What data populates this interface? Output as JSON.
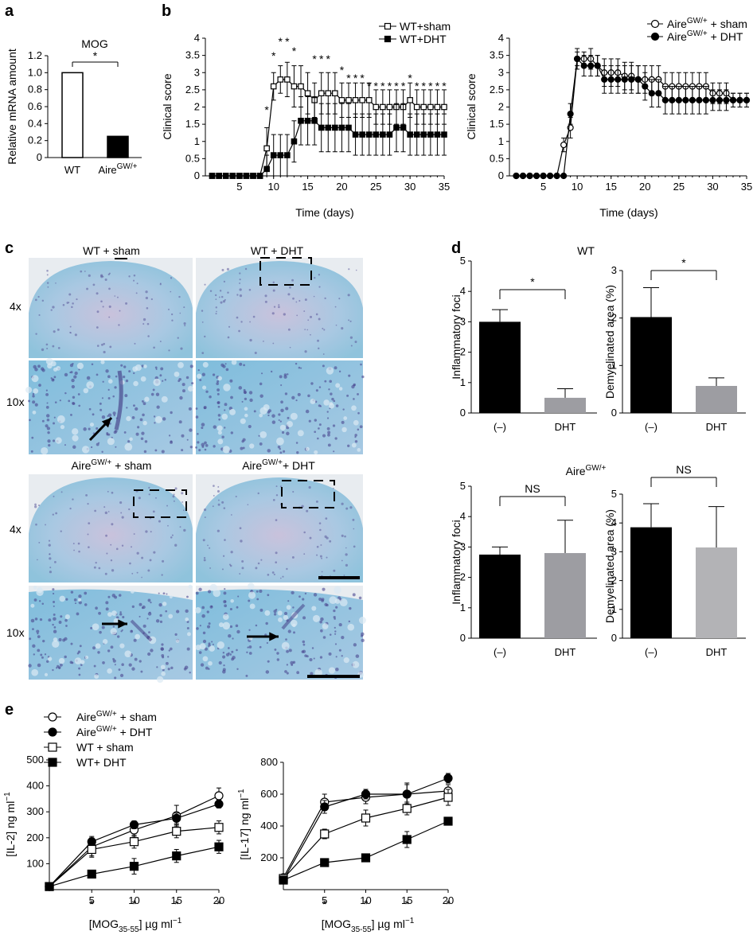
{
  "panel_labels": {
    "a": "a",
    "b": "b",
    "c": "c",
    "d": "d",
    "e": "e"
  },
  "chart_data": [
    {
      "id": "a",
      "type": "bar",
      "title": "MOG",
      "ylabel": "Relative mRNA amount",
      "ylim": [
        0,
        1.2
      ],
      "yticks": [
        "0",
        "0.2",
        "0.4",
        "0.6",
        "0.8",
        "1.0",
        "1.2"
      ],
      "categories": [
        "WT",
        "Aire"
      ],
      "category_superscripts": [
        "",
        "GW/+"
      ],
      "values": [
        1.0,
        0.25
      ],
      "colors": [
        "#ffffff",
        "#000000"
      ],
      "significance": "*"
    },
    {
      "id": "b-left",
      "type": "line",
      "xlabel": "Time (days)",
      "ylabel": "Clinical score",
      "xlim": [
        0,
        35
      ],
      "ylim": [
        0,
        4
      ],
      "xticks": [
        "5",
        "10",
        "15",
        "20",
        "25",
        "30",
        "35"
      ],
      "yticks": [
        "0",
        "0.5",
        "1",
        "1.5",
        "2",
        "2.5",
        "3",
        "3.5",
        "4"
      ],
      "series": [
        {
          "name": "WT+sham",
          "marker": "open-square",
          "x": [
            1,
            2,
            3,
            4,
            5,
            6,
            7,
            8,
            9,
            10,
            11,
            12,
            13,
            14,
            15,
            16,
            17,
            18,
            19,
            20,
            21,
            22,
            23,
            24,
            25,
            26,
            27,
            28,
            29,
            30,
            31,
            32,
            33,
            34,
            35
          ],
          "y": [
            0,
            0,
            0,
            0,
            0,
            0,
            0,
            0,
            0.8,
            2.6,
            2.8,
            2.8,
            2.6,
            2.6,
            2.4,
            2.2,
            2.4,
            2.4,
            2.4,
            2.2,
            2.2,
            2.2,
            2.2,
            2.2,
            2.0,
            2.0,
            2.0,
            2.0,
            2.0,
            2.2,
            2.0,
            2.0,
            2.0,
            2.0,
            2.0
          ],
          "err": [
            0,
            0,
            0,
            0,
            0,
            0,
            0,
            0,
            0.6,
            0.4,
            0.4,
            0.5,
            0.6,
            0.6,
            0.6,
            0.5,
            0.6,
            0.6,
            0.6,
            0.5,
            0.5,
            0.5,
            0.5,
            0.5,
            0.5,
            0.5,
            0.5,
            0.5,
            0.5,
            0.5,
            0.5,
            0.5,
            0.5,
            0.5,
            0.5
          ]
        },
        {
          "name": "WT+DHT",
          "marker": "filled-square",
          "x": [
            1,
            2,
            3,
            4,
            5,
            6,
            7,
            8,
            9,
            10,
            11,
            12,
            13,
            14,
            15,
            16,
            17,
            18,
            19,
            20,
            21,
            22,
            23,
            24,
            25,
            26,
            27,
            28,
            29,
            30,
            31,
            32,
            33,
            34,
            35
          ],
          "y": [
            0,
            0,
            0,
            0,
            0,
            0,
            0,
            0,
            0.2,
            0.6,
            0.6,
            0.6,
            1.0,
            1.6,
            1.6,
            1.6,
            1.4,
            1.4,
            1.4,
            1.4,
            1.4,
            1.2,
            1.2,
            1.2,
            1.2,
            1.2,
            1.2,
            1.4,
            1.4,
            1.2,
            1.2,
            1.2,
            1.2,
            1.2,
            1.2
          ],
          "err": [
            0,
            0,
            0,
            0,
            0,
            0,
            0,
            0,
            0.4,
            0.6,
            0.6,
            0.6,
            0.6,
            0.7,
            0.7,
            0.7,
            0.7,
            0.7,
            0.7,
            0.7,
            0.7,
            0.6,
            0.6,
            0.6,
            0.6,
            0.6,
            0.6,
            0.7,
            0.7,
            0.6,
            0.6,
            0.6,
            0.6,
            0.6,
            0.6
          ]
        }
      ],
      "significance": [
        {
          "x": 9,
          "text": "*"
        },
        {
          "x": 10,
          "text": "*"
        },
        {
          "x": 11,
          "text": "*"
        },
        {
          "x": 12,
          "text": "*"
        },
        {
          "x": 13,
          "text": "*"
        },
        {
          "x": 16,
          "text": "*"
        },
        {
          "x": 17,
          "text": "*"
        },
        {
          "x": 18,
          "text": "*"
        },
        {
          "x": 20,
          "text": "*"
        },
        {
          "x": 21,
          "text": "*"
        },
        {
          "x": 22,
          "text": "*"
        },
        {
          "x": 23,
          "text": "*"
        },
        {
          "x": 24,
          "text": "*"
        },
        {
          "x": 25,
          "text": "*"
        },
        {
          "x": 26,
          "text": "*"
        },
        {
          "x": 27,
          "text": "*"
        },
        {
          "x": 28,
          "text": "*"
        },
        {
          "x": 29,
          "text": "*"
        },
        {
          "x": 30,
          "text": "*"
        },
        {
          "x": 31,
          "text": "*"
        },
        {
          "x": 32,
          "text": "*"
        },
        {
          "x": 33,
          "text": "*"
        },
        {
          "x": 34,
          "text": "*"
        },
        {
          "x": 35,
          "text": "*"
        }
      ]
    },
    {
      "id": "b-right",
      "type": "line",
      "xlabel": "Time (days)",
      "ylabel": "Clinical score",
      "xlim": [
        0,
        35
      ],
      "ylim": [
        0,
        4
      ],
      "xticks": [
        "5",
        "10",
        "15",
        "20",
        "25",
        "30",
        "35"
      ],
      "yticks": [
        "0",
        "0.5",
        "1",
        "1.5",
        "2",
        "2.5",
        "3",
        "3.5",
        "4"
      ],
      "series": [
        {
          "name": "Aire",
          "name_sup": "GW/+",
          "name_suffix": " + sham",
          "marker": "open-circle",
          "x": [
            1,
            2,
            3,
            4,
            5,
            6,
            7,
            8,
            9,
            10,
            11,
            12,
            13,
            14,
            15,
            16,
            17,
            18,
            19,
            20,
            21,
            22,
            23,
            24,
            25,
            26,
            27,
            28,
            29,
            30,
            31,
            32,
            33,
            34,
            35
          ],
          "y": [
            0,
            0,
            0,
            0,
            0,
            0,
            0,
            0.9,
            1.4,
            3.4,
            3.4,
            3.4,
            3.2,
            3.0,
            3.0,
            3.0,
            2.9,
            2.9,
            2.8,
            2.8,
            2.8,
            2.8,
            2.6,
            2.6,
            2.6,
            2.6,
            2.6,
            2.6,
            2.6,
            2.4,
            2.4,
            2.4,
            2.2,
            2.2,
            2.2
          ],
          "err": [
            0,
            0,
            0,
            0,
            0,
            0,
            0,
            0.2,
            0.3,
            0.2,
            0.2,
            0.3,
            0.3,
            0.4,
            0.4,
            0.4,
            0.4,
            0.4,
            0.4,
            0.4,
            0.4,
            0.4,
            0.4,
            0.4,
            0.4,
            0.4,
            0.4,
            0.4,
            0.4,
            0.3,
            0.3,
            0.3,
            0.2,
            0.2,
            0.2
          ]
        },
        {
          "name": "Aire",
          "name_sup": "GW/+",
          "name_suffix": " + DHT",
          "marker": "filled-circle",
          "x": [
            1,
            2,
            3,
            4,
            5,
            6,
            7,
            8,
            9,
            10,
            11,
            12,
            13,
            14,
            15,
            16,
            17,
            18,
            19,
            20,
            21,
            22,
            23,
            24,
            25,
            26,
            27,
            28,
            29,
            30,
            31,
            32,
            33,
            34,
            35
          ],
          "y": [
            0,
            0,
            0,
            0,
            0,
            0,
            0,
            0,
            1.8,
            3.4,
            3.2,
            3.2,
            3.2,
            2.8,
            2.8,
            2.8,
            2.8,
            2.8,
            2.8,
            2.6,
            2.4,
            2.4,
            2.2,
            2.2,
            2.2,
            2.2,
            2.2,
            2.2,
            2.2,
            2.2,
            2.2,
            2.2,
            2.2,
            2.2,
            2.2
          ],
          "err": [
            0,
            0,
            0,
            0,
            0,
            0,
            0,
            0,
            0.3,
            0.3,
            0.3,
            0.3,
            0.3,
            0.4,
            0.4,
            0.4,
            0.4,
            0.4,
            0.4,
            0.4,
            0.4,
            0.4,
            0.4,
            0.4,
            0.4,
            0.4,
            0.4,
            0.4,
            0.4,
            0.3,
            0.3,
            0.3,
            0.2,
            0.2,
            0.2
          ]
        }
      ]
    },
    {
      "id": "d-wt-foci",
      "type": "bar",
      "title": "WT",
      "ylabel": "Inflammatory foci",
      "ylim": [
        0,
        5
      ],
      "yticks": [
        "0",
        "1",
        "2",
        "3",
        "4",
        "5"
      ],
      "categories": [
        "(–)",
        "DHT"
      ],
      "values": [
        3.0,
        0.5
      ],
      "err": [
        0.4,
        0.3
      ],
      "colors": [
        "#000000",
        "#9d9da2"
      ],
      "significance": "*"
    },
    {
      "id": "d-wt-demyel",
      "type": "bar",
      "ylabel": "Demyelinated area (%)",
      "ylim": [
        0,
        3
      ],
      "yticks": [
        "0",
        "1",
        "2",
        "3"
      ],
      "categories": [
        "(–)",
        "DHT"
      ],
      "values": [
        2.02,
        0.57
      ],
      "err": [
        0.62,
        0.17
      ],
      "colors": [
        "#000000",
        "#9d9da2"
      ],
      "significance": "*"
    },
    {
      "id": "d-aire-foci",
      "type": "bar",
      "title": "Aire",
      "title_sup": "GW/+",
      "ylabel": "Inflammatory foci",
      "ylim": [
        0,
        5
      ],
      "yticks": [
        "0",
        "1",
        "2",
        "3",
        "4",
        "5"
      ],
      "categories": [
        "(–)",
        "DHT"
      ],
      "values": [
        2.75,
        2.8
      ],
      "err": [
        0.25,
        1.08
      ],
      "colors": [
        "#000000",
        "#9d9da2"
      ],
      "significance": "NS"
    },
    {
      "id": "d-aire-demyel",
      "type": "bar",
      "ylabel": "Demyelinated area (%)",
      "ylim": [
        0,
        5
      ],
      "yticks": [
        "0",
        "1",
        "2",
        "3",
        "4",
        "5"
      ],
      "categories": [
        "(–)",
        "DHT"
      ],
      "values": [
        3.85,
        3.15
      ],
      "err": [
        0.82,
        1.42
      ],
      "colors": [
        "#000000",
        "#b3b3b6"
      ],
      "significance": "NS"
    },
    {
      "id": "e-il2",
      "type": "line",
      "ylabel": "[IL-2] ng ml",
      "ylabel_sup": "−1",
      "xlabel": "[MOG",
      "xlabel_sub": "35-55",
      "xlabel_suffix": "] µg ml",
      "xlabel_sup": "−1",
      "xlim": [
        0,
        20
      ],
      "ylim": [
        0,
        500
      ],
      "xticks": [
        "5",
        "10",
        "15",
        "20"
      ],
      "yticks": [
        "100",
        "200",
        "300",
        "400",
        "500"
      ],
      "series": [
        {
          "name": "Aire",
          "name_sup": "GW/+",
          "name_suffix": " + sham",
          "marker": "open-circle",
          "x": [
            0,
            5,
            10,
            15,
            20
          ],
          "y": [
            12,
            165,
            230,
            285,
            362
          ],
          "err": [
            8,
            35,
            25,
            40,
            30
          ]
        },
        {
          "name": "Aire",
          "name_sup": "GW/+",
          "name_suffix": " + DHT",
          "marker": "filled-circle",
          "x": [
            0,
            5,
            10,
            15,
            20
          ],
          "y": [
            12,
            185,
            250,
            275,
            330
          ],
          "err": [
            8,
            20,
            15,
            20,
            15
          ]
        },
        {
          "name": "WT + sham",
          "marker": "open-square",
          "x": [
            0,
            5,
            10,
            15,
            20
          ],
          "y": [
            12,
            155,
            185,
            225,
            240
          ],
          "err": [
            8,
            30,
            25,
            25,
            25
          ]
        },
        {
          "name": "WT+ DHT",
          "marker": "filled-square",
          "x": [
            0,
            5,
            10,
            15,
            20
          ],
          "y": [
            12,
            60,
            90,
            130,
            165
          ],
          "err": [
            8,
            10,
            30,
            25,
            25
          ]
        }
      ],
      "significance": [
        {
          "x": 5,
          "text": "*"
        },
        {
          "x": 10,
          "text": "*"
        },
        {
          "x": 15,
          "text": "*"
        },
        {
          "x": 20,
          "text": "*"
        }
      ]
    },
    {
      "id": "e-il17",
      "type": "line",
      "ylabel": "[IL-17] ng ml",
      "ylabel_sup": "−1",
      "xlabel": "[MOG",
      "xlabel_sub": "35-55",
      "xlabel_suffix": "] µg ml",
      "xlabel_sup": "−1",
      "xlim": [
        0,
        20
      ],
      "ylim": [
        0,
        800
      ],
      "xticks": [
        "5",
        "10",
        "15",
        "20"
      ],
      "yticks": [
        "200",
        "400",
        "600",
        "800"
      ],
      "series": [
        {
          "name": "Aire",
          "name_sup": "GW/+",
          "name_suffix": " + sham",
          "marker": "open-circle",
          "x": [
            0,
            5,
            10,
            15,
            20
          ],
          "y": [
            75,
            550,
            580,
            600,
            620
          ],
          "err": [
            20,
            50,
            40,
            60,
            40
          ]
        },
        {
          "name": "Aire",
          "name_sup": "GW/+",
          "name_suffix": " + DHT",
          "marker": "filled-circle",
          "x": [
            0,
            5,
            10,
            15,
            20
          ],
          "y": [
            60,
            520,
            600,
            600,
            700
          ],
          "err": [
            20,
            40,
            30,
            70,
            30
          ]
        },
        {
          "name": "WT + sham",
          "marker": "open-square",
          "x": [
            0,
            5,
            10,
            15,
            20
          ],
          "y": [
            70,
            350,
            450,
            510,
            580
          ],
          "err": [
            20,
            30,
            50,
            40,
            50
          ]
        },
        {
          "name": "WT+ DHT",
          "marker": "filled-square",
          "x": [
            0,
            5,
            10,
            15,
            20
          ],
          "y": [
            60,
            170,
            200,
            315,
            430
          ],
          "err": [
            15,
            15,
            20,
            50,
            20
          ]
        }
      ],
      "significance": [
        {
          "x": 5,
          "text": "*"
        },
        {
          "x": 10,
          "text": "*"
        },
        {
          "x": 15,
          "text": "*"
        },
        {
          "x": 20,
          "text": "*"
        }
      ]
    }
  ],
  "histology": {
    "wt_sham": "WT + sham",
    "wt_dht": "WT + DHT",
    "aire_sham_main": "Aire",
    "aire_sham_sup": "GW/+",
    "aire_sham_suffix": " + sham",
    "aire_dht_main": "Aire",
    "aire_dht_sup": "GW/+",
    "aire_dht_suffix": "+ DHT",
    "mag_low": "4x",
    "mag_high": "10x",
    "stain_color": "#8fc3dc"
  }
}
